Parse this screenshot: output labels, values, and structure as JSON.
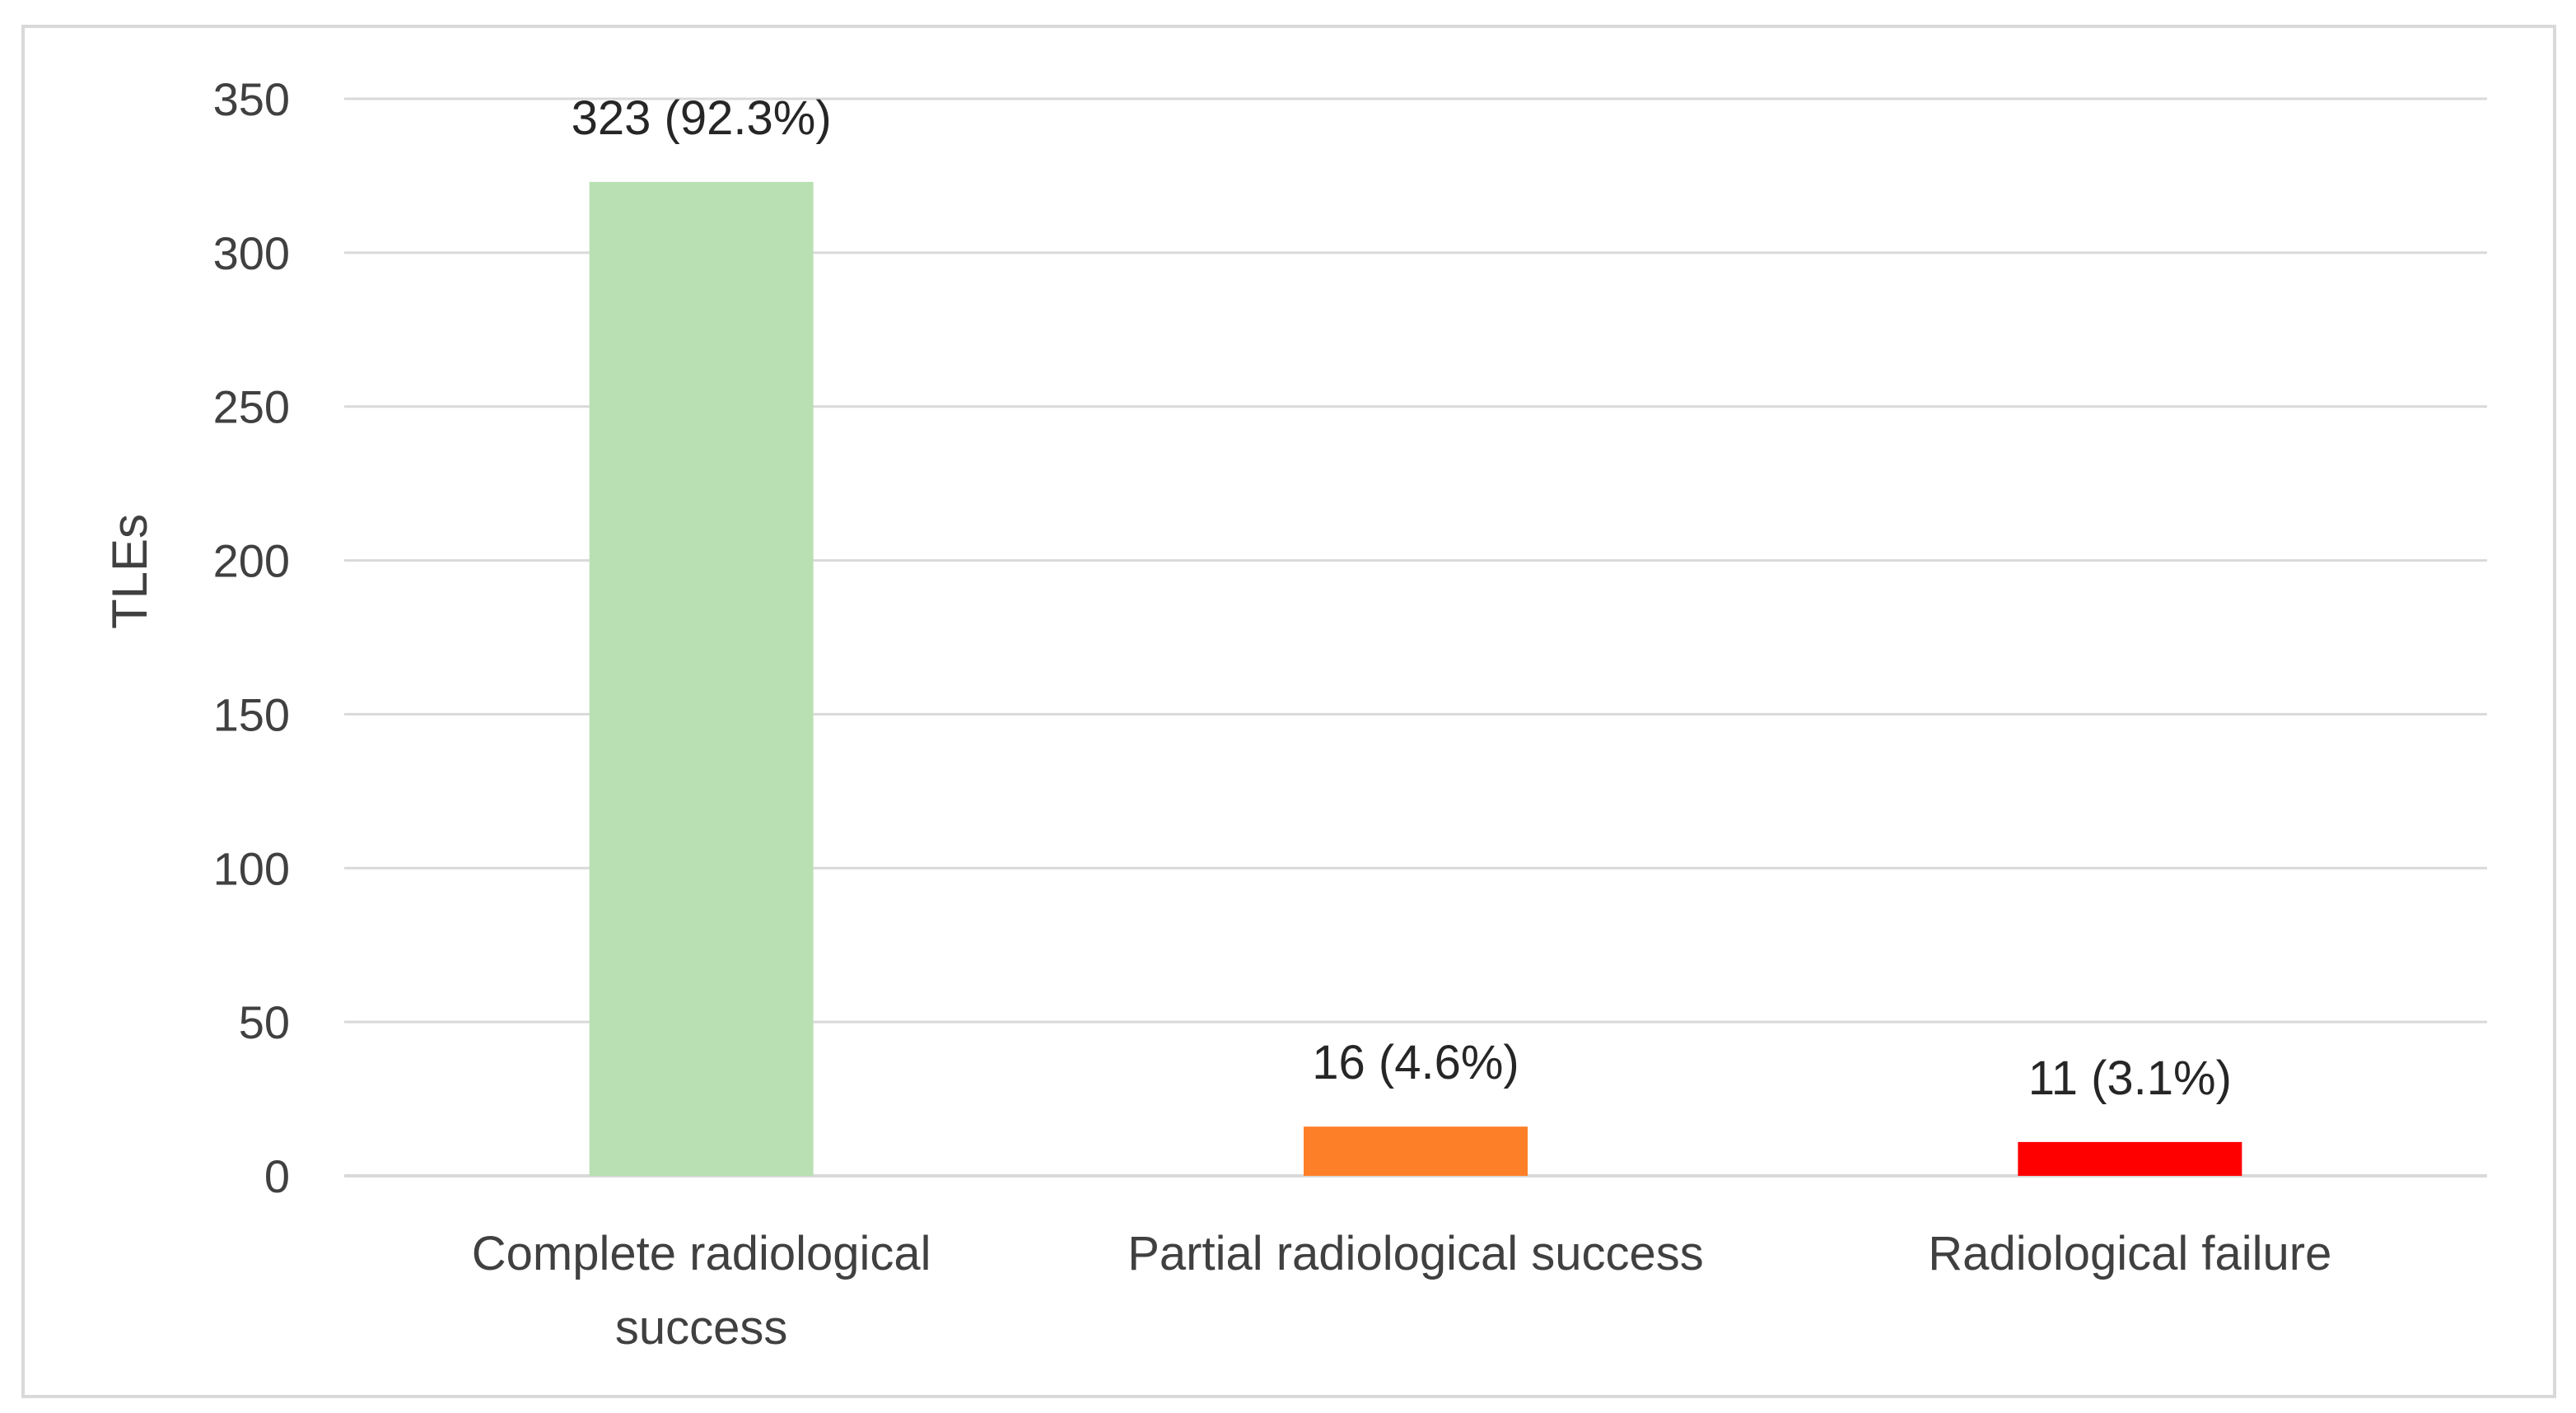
{
  "chart_data": {
    "type": "bar",
    "title": "",
    "xlabel": "",
    "ylabel": "TLEs",
    "ylim": [
      0,
      350
    ],
    "yticks": [
      0,
      50,
      100,
      150,
      200,
      250,
      300,
      350
    ],
    "grid": true,
    "legend": "none",
    "categories": [
      [
        "Complete radiological",
        "success"
      ],
      [
        "Partial radiological success"
      ],
      [
        "Radiological failure"
      ]
    ],
    "values": [
      323,
      16,
      11
    ],
    "data_labels": [
      "323 (92.3%)",
      "16 (4.6%)",
      "11 (3.1%)"
    ],
    "colors": [
      "#b9e0b2",
      "#fd7f27",
      "#ff0000"
    ]
  }
}
